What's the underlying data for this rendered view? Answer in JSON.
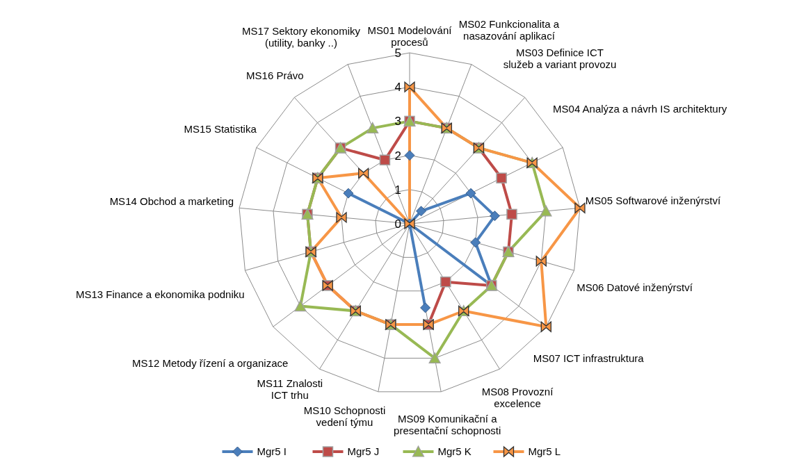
{
  "chart_data": {
    "type": "radar",
    "categories": [
      "MS01 Modelování procesů",
      "MS02 Funkcionalita a nasazování aplikací",
      "MS03 Definice ICT služeb a variant provozu",
      "MS04 Analýza a návrh IS architektury",
      "MS05 Softwarové inženýrství",
      "MS06 Datové inženýrství",
      "MS07 ICT infrastruktura",
      "MS08 Provozní excelence",
      "MS09 Komunikační a presentační schopnosti",
      "MS10 Schopnosti vedení týmu",
      "MS11 Znalosti ICT trhu",
      "MS12 Metody řízení a organizace",
      "MS13 Finance a ekonomika podniku",
      "MS14 Obchod a marketing",
      "MS15 Statistika",
      "MS16 Právo",
      "MS17 Sektory ekonomiky (utility, banky ..)"
    ],
    "series": [
      {
        "name": "Mgr5 I",
        "color": "#4a7ebb",
        "marker": "diamond",
        "values": [
          2,
          0,
          0.5,
          2,
          2.5,
          2,
          3,
          0,
          2.5,
          0,
          0,
          0,
          0,
          0,
          2,
          0,
          0
        ]
      },
      {
        "name": "Mgr5 J",
        "color": "#be4b48",
        "marker": "square",
        "values": [
          3,
          3,
          3,
          3,
          3,
          3,
          3,
          2,
          3,
          3,
          3,
          3,
          3,
          3,
          3,
          3,
          2
        ]
      },
      {
        "name": "Mgr5 K",
        "color": "#98b954",
        "marker": "triangle",
        "values": [
          3,
          3,
          3,
          4,
          4,
          3,
          3,
          3,
          4,
          3,
          3,
          4,
          3,
          3,
          3,
          3,
          3
        ]
      },
      {
        "name": "Mgr5 L",
        "color": "#f79646",
        "marker": "cross",
        "values": [
          4,
          3,
          3,
          4,
          5,
          4,
          5,
          3,
          3,
          3,
          3,
          3,
          3,
          2,
          3,
          2,
          0
        ]
      }
    ],
    "ylim": [
      0,
      5
    ],
    "yticks": [
      0,
      1,
      2,
      3,
      4,
      5
    ],
    "grid": true,
    "legend": "bottom"
  }
}
